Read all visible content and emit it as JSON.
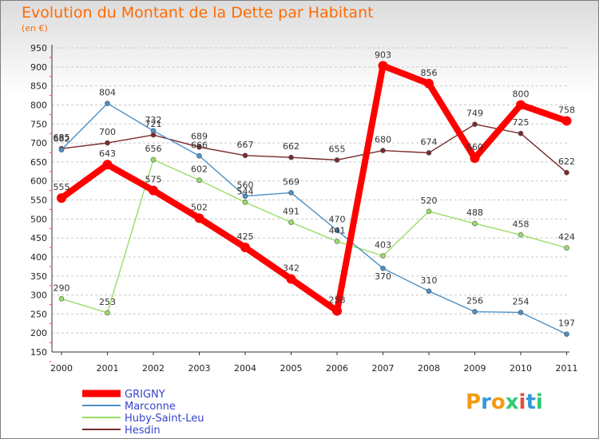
{
  "header": {
    "title": "Evolution du Montant de la Dette par Habitant",
    "subtitle": "(en €)"
  },
  "logo": {
    "text": "Proxiti",
    "colors": [
      "#f39c12",
      "#3498db",
      "#f39c12",
      "#2ecc71",
      "#e74c3c",
      "#3498db",
      "#2ecc71"
    ]
  },
  "chart_data": {
    "type": "line",
    "title": "Evolution du Montant de la Dette par Habitant",
    "subtitle": "(en €)",
    "x": [
      "2000",
      "2001",
      "2002",
      "2003",
      "2004",
      "2005",
      "2006",
      "2007",
      "2008",
      "2009",
      "2010",
      "2011"
    ],
    "ylim": [
      150,
      950
    ],
    "yticks": [
      150,
      200,
      250,
      300,
      350,
      400,
      450,
      500,
      550,
      600,
      650,
      700,
      750,
      800,
      850,
      900,
      950
    ],
    "grid": "horizontal dashed",
    "legend": "bottom-left",
    "series": [
      {
        "name": "GRIGNY",
        "color": "#ff0000",
        "values": [
          555,
          643,
          575,
          502,
          425,
          342,
          258,
          903,
          856,
          660,
          800,
          758
        ]
      },
      {
        "name": "Marconne",
        "color": "#4a90c8",
        "values": [
          682,
          804,
          732,
          666,
          560,
          569,
          470,
          370,
          310,
          256,
          254,
          197
        ]
      },
      {
        "name": "Huby-Saint-Leu",
        "color": "#99dd66",
        "values": [
          290,
          253,
          656,
          602,
          544,
          491,
          441,
          403,
          520,
          488,
          458,
          424
        ]
      },
      {
        "name": "Hesdin",
        "color": "#7a2a2a",
        "values": [
          685,
          700,
          721,
          689,
          667,
          662,
          655,
          680,
          674,
          749,
          725,
          622
        ]
      }
    ]
  }
}
